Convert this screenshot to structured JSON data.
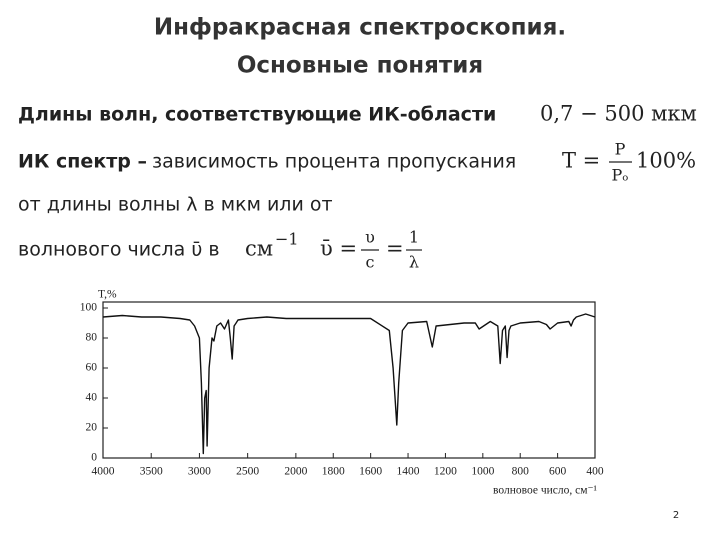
{
  "title": [
    "Инфракрасная спектроскопия.",
    "Основные понятия"
  ],
  "line1": {
    "text": "Длины волн, соответствующие ИК-области",
    "formula": "0,7 − 500 мкм"
  },
  "line2": {
    "bold": "ИК спектр –",
    "text": "зависимость процента пропускания",
    "formula": {
      "lhs": "T =",
      "num": "P",
      "den": "Pₒ",
      "rhs": "100%"
    }
  },
  "line3": {
    "text": "от длины волны λ в мкм или от"
  },
  "line4": {
    "text": "волнового числа ῡ в",
    "unit": "см",
    "unit_sup": "−1",
    "formula": {
      "lhs": "ῡ =",
      "num": "υ",
      "den": "c",
      "eq": "=",
      "num2": "1",
      "den2": "λ"
    }
  },
  "page_number": "2",
  "chart_data": {
    "type": "line",
    "ylabel": "T,%",
    "xlabel": "волновое число, см⁻¹",
    "xlim": [
      4000,
      400
    ],
    "xticks": [
      4000,
      3500,
      3000,
      2500,
      2000,
      1800,
      1600,
      1400,
      1200,
      1000,
      800,
      600,
      400
    ],
    "ylim": [
      0,
      104
    ],
    "yticks": [
      0,
      20,
      40,
      60,
      80,
      100
    ],
    "x": [
      4000,
      3800,
      3600,
      3400,
      3200,
      3100,
      3050,
      3000,
      2980,
      2960,
      2945,
      2930,
      2920,
      2900,
      2870,
      2850,
      2820,
      2780,
      2740,
      2700,
      2680,
      2660,
      2640,
      2620,
      2600,
      2500,
      2300,
      2100,
      2000,
      1800,
      1600,
      1500,
      1480,
      1460,
      1450,
      1430,
      1400,
      1300,
      1270,
      1250,
      1100,
      1040,
      1020,
      960,
      920,
      907,
      895,
      880,
      870,
      860,
      850,
      800,
      700,
      660,
      640,
      600,
      540,
      528,
      515,
      500,
      450,
      400
    ],
    "series": [
      {
        "color": "#111111",
        "values": [
          94,
          95,
          94,
          94,
          93,
          92,
          88,
          80,
          50,
          3,
          40,
          45,
          8,
          60,
          80,
          78,
          88,
          90,
          86,
          92,
          80,
          66,
          88,
          90,
          92,
          93,
          94,
          93,
          93,
          93,
          93,
          85,
          60,
          22,
          50,
          85,
          90,
          91,
          74,
          88,
          90,
          90,
          86,
          91,
          88,
          63,
          85,
          88,
          67,
          85,
          88,
          90,
          91,
          89,
          86,
          90,
          91,
          88,
          92,
          94,
          96,
          94
        ]
      }
    ]
  }
}
